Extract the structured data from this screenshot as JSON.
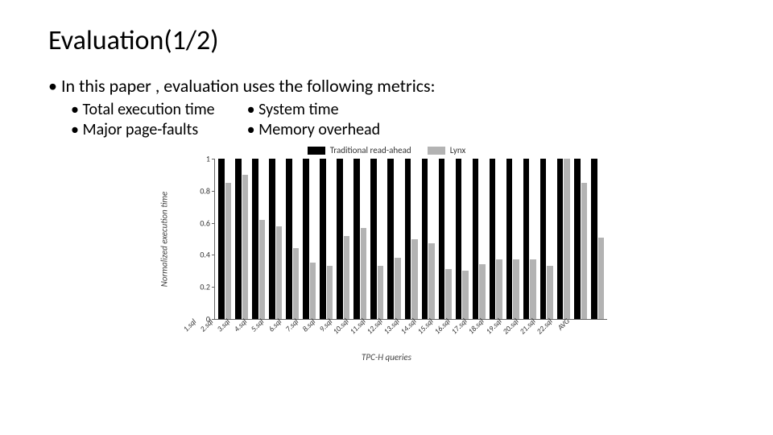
{
  "title": "Evaluation(1/2)",
  "intro": "In this paper , evaluation uses the following metrics:",
  "metrics_left": [
    "Total execution time",
    "Major page-faults"
  ],
  "metrics_right": [
    "System time",
    "Memory overhead"
  ],
  "chart": {
    "type": "bar",
    "ylabel": "Normalized execution time",
    "xlabel": "TPC-H queries",
    "ylim": [
      0,
      1
    ],
    "ytick_step": 0.2,
    "yticks": [
      0,
      0.2,
      0.4,
      0.6,
      0.8,
      1
    ],
    "legend": [
      {
        "label": "Traditional read-ahead",
        "color": "#000000"
      },
      {
        "label": "Lynx",
        "color": "#b3b3b3"
      }
    ],
    "series_colors": [
      "#000000",
      "#b3b3b3"
    ],
    "background_color": "#ffffff",
    "axis_color": "#666666",
    "label_color": "#333333",
    "label_fontsize": 10,
    "categories": [
      "1.sql",
      "2.sql",
      "3.sql",
      "4.sql",
      "5.sql",
      "6.sql",
      "7.sql",
      "8.sql",
      "9.sql",
      "10.sql",
      "11.sql",
      "12.sql",
      "13.sql",
      "14.sql",
      "15.sql",
      "16.sql",
      "17.sql",
      "18.sql",
      "19.sql",
      "20.sql",
      "21.sql",
      "22.sql",
      "AVG"
    ],
    "values_a": [
      1.0,
      1.0,
      1.0,
      1.0,
      1.0,
      1.0,
      1.0,
      1.0,
      1.0,
      1.0,
      1.0,
      1.0,
      1.0,
      1.0,
      1.0,
      1.0,
      1.0,
      1.0,
      1.0,
      1.0,
      1.0,
      1.0,
      1.0
    ],
    "values_b": [
      0.85,
      0.9,
      0.62,
      0.58,
      0.44,
      0.35,
      0.33,
      0.52,
      0.57,
      0.33,
      0.38,
      0.5,
      0.47,
      0.31,
      0.3,
      0.34,
      0.37,
      0.37,
      0.37,
      0.33,
      1.0,
      0.85,
      0.51
    ]
  }
}
